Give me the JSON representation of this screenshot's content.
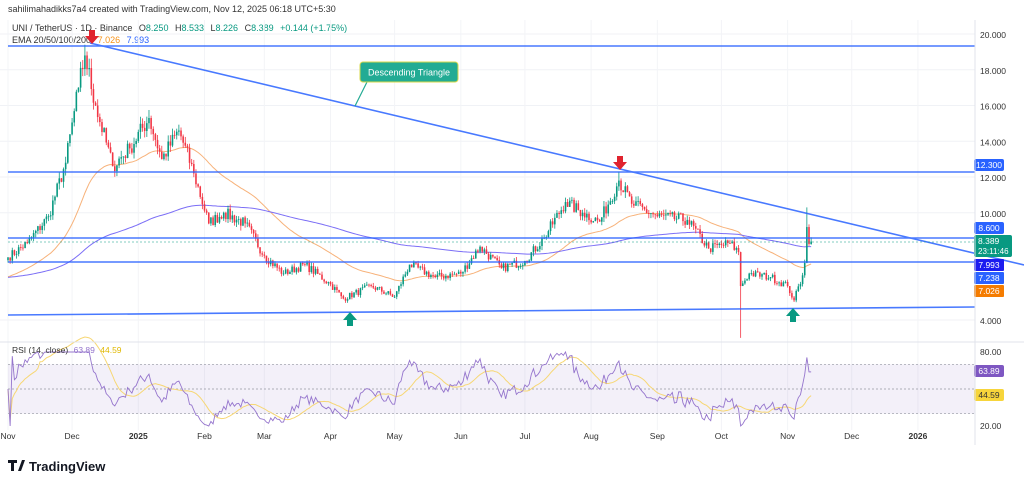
{
  "header": {
    "credit": "sahilimahadikks7a4 created with TradingView.com, Nov 12, 2025 06:18 UTC+5:30",
    "symbol": "UNI / TetherUS · 1D · Binance",
    "open_label": "O",
    "open": "8.250",
    "high_label": "H",
    "high": "8.533",
    "low_label": "L",
    "low": "8.226",
    "close_label": "C",
    "close": "8.389",
    "change": "+0.144 (+1.75%)",
    "ema_label": "EMA 20/50/100/200",
    "ema_val_1": "7.026",
    "ema_val_2": "7.993"
  },
  "colors": {
    "up": "#089981",
    "down": "#f23645",
    "line": "#2962ff",
    "ema_orange": "#f7b27a",
    "ema_blue": "#7b6ef6",
    "rsi": "#9575cd",
    "rsi_ma": "#f7d774"
  },
  "annotation": {
    "label": "Descending Triangle"
  },
  "chart_data": {
    "type": "candlestick",
    "title": "UNI / TetherUS · 1D · Binance",
    "price_axis_ticks": [
      "20.000",
      "18.000",
      "16.000",
      "14.000",
      "12.000",
      "10.000",
      "4.000"
    ],
    "ylim": [
      3,
      21
    ],
    "time_axis_ticks": [
      "Nov",
      "Dec",
      "2025",
      "Feb",
      "Mar",
      "Apr",
      "May",
      "Jun",
      "Jul",
      "Aug",
      "Sep",
      "Oct",
      "Nov",
      "Dec",
      "2026"
    ],
    "close_path_approx": [
      [
        "2024-11-01",
        7.5
      ],
      [
        "2024-11-10",
        8.3
      ],
      [
        "2024-11-20",
        9.8
      ],
      [
        "2024-11-28",
        12.8
      ],
      [
        "2024-12-04",
        17
      ],
      [
        "2024-12-07",
        18.8
      ],
      [
        "2024-12-12",
        16
      ],
      [
        "2024-12-20",
        12.6
      ],
      [
        "2024-12-28",
        13.6
      ],
      [
        "2025-01-06",
        15.3
      ],
      [
        "2025-01-12",
        13
      ],
      [
        "2025-01-20",
        14.6
      ],
      [
        "2025-01-27",
        12.2
      ],
      [
        "2025-02-03",
        9.4
      ],
      [
        "2025-02-10",
        10
      ],
      [
        "2025-02-20",
        9.4
      ],
      [
        "2025-03-01",
        7.6
      ],
      [
        "2025-03-10",
        6.6
      ],
      [
        "2025-03-20",
        7.1
      ],
      [
        "2025-04-01",
        6
      ],
      [
        "2025-04-07",
        5.2
      ],
      [
        "2025-04-20",
        5.9
      ],
      [
        "2025-05-01",
        5.3
      ],
      [
        "2025-05-08",
        7.1
      ],
      [
        "2025-05-20",
        6.4
      ],
      [
        "2025-06-01",
        6.6
      ],
      [
        "2025-06-10",
        8.1
      ],
      [
        "2025-06-20",
        6.9
      ],
      [
        "2025-07-01",
        7.3
      ],
      [
        "2025-07-10",
        8.6
      ],
      [
        "2025-07-20",
        10.6
      ],
      [
        "2025-07-28",
        10
      ],
      [
        "2025-08-05",
        9.5
      ],
      [
        "2025-08-14",
        11.8
      ],
      [
        "2025-08-20",
        10.5
      ],
      [
        "2025-09-01",
        9.8
      ],
      [
        "2025-09-15",
        9.6
      ],
      [
        "2025-09-25",
        8
      ],
      [
        "2025-10-05",
        8.3
      ],
      [
        "2025-10-09",
        7.8
      ],
      [
        "2025-10-10",
        5.9
      ],
      [
        "2025-10-14",
        6.6
      ],
      [
        "2025-10-24",
        6.4
      ],
      [
        "2025-11-01",
        5.9
      ],
      [
        "2025-11-04",
        5.1
      ],
      [
        "2025-11-08",
        6.5
      ],
      [
        "2025-11-09",
        7.2
      ],
      [
        "2025-11-10",
        9.2
      ],
      [
        "2025-11-11",
        8.25
      ],
      [
        "2025-11-12",
        8.389
      ]
    ],
    "levels": {
      "resistance_top": 19.3,
      "resistance_mid": "12.300",
      "level_a": "8.600",
      "level_b": "7.238",
      "support": 4.6
    },
    "price_tags": {
      "last": "8.389",
      "countdown": "23:11:46",
      "ema_blue": "7.993",
      "ema_orange": "7.026"
    },
    "rsi": {
      "label": "RSI (14, close)",
      "value": "63.89",
      "ma_value": "44.59",
      "axis_ticks": [
        "80.00",
        "20.00"
      ],
      "bands": [
        30,
        50,
        70
      ],
      "ylim": [
        20,
        80
      ]
    }
  },
  "footer": {
    "logo_text": "TradingView"
  }
}
